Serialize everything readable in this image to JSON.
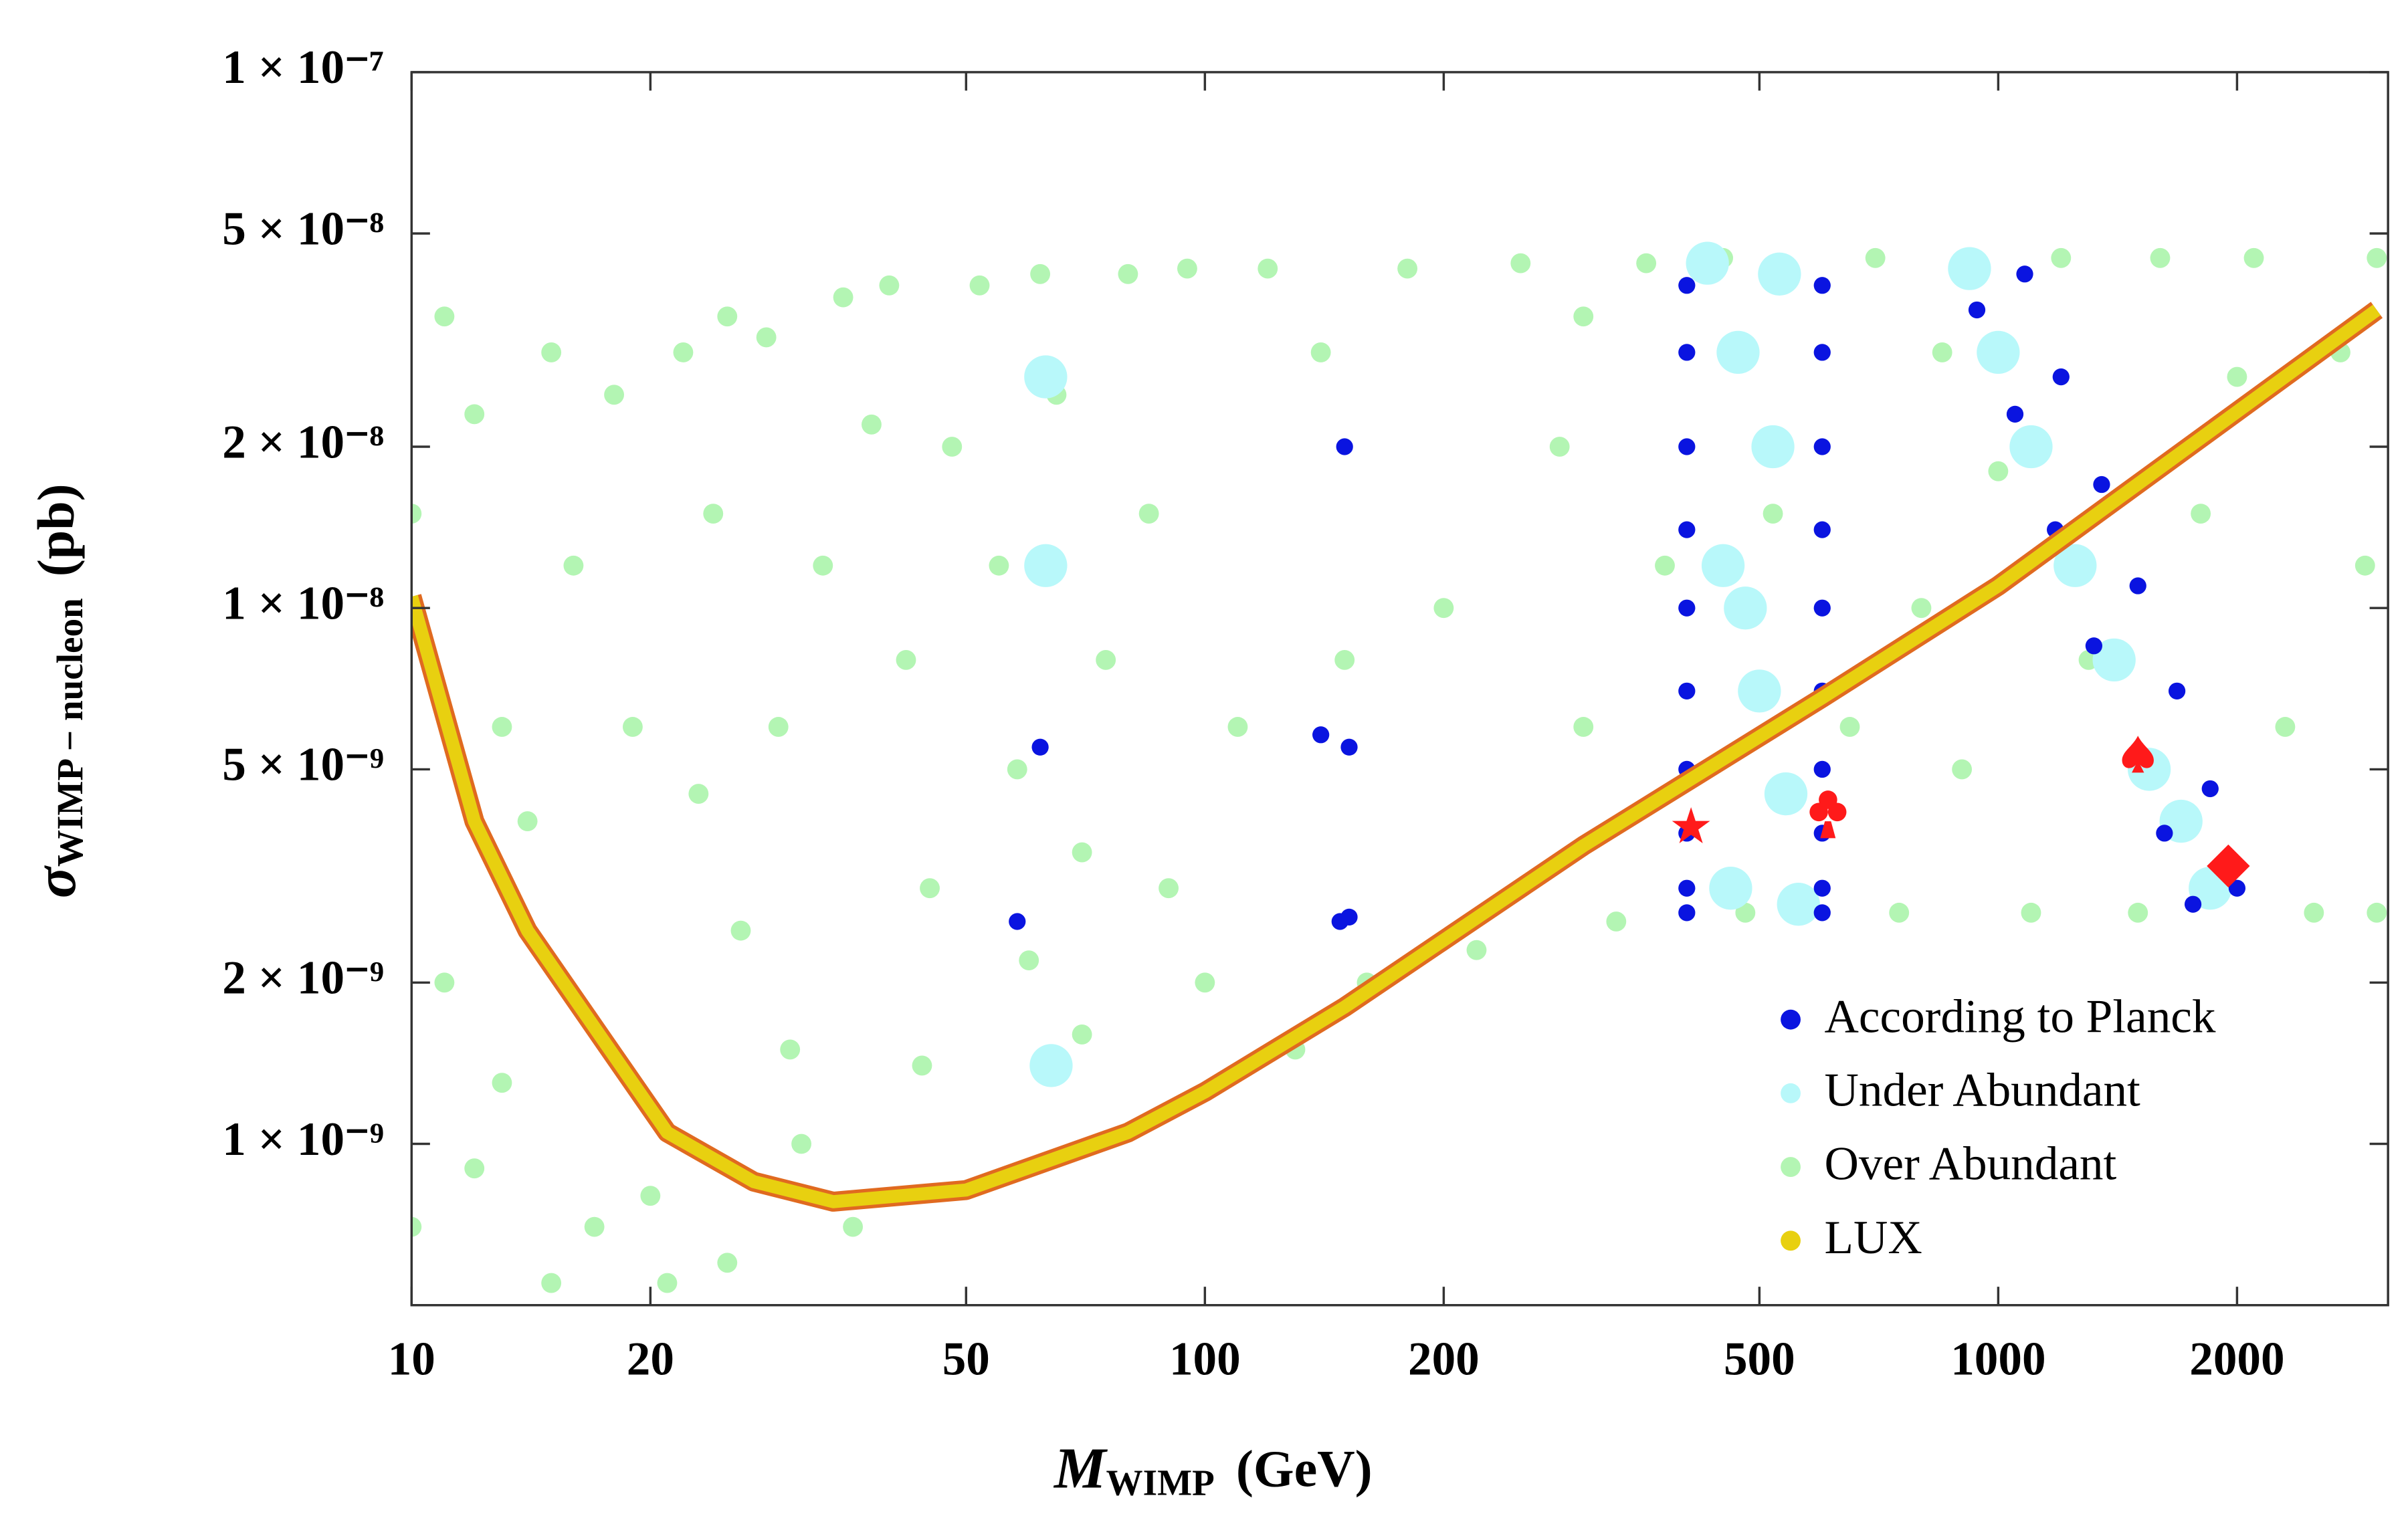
{
  "chart_data": {
    "type": "scatter",
    "x_label": {
      "symbol": "M",
      "subscript": "WIMP",
      "unit": "(GeV)"
    },
    "y_label": {
      "symbol": "σ",
      "subscript": "WIMP − nucleon",
      "unit": "(pb)"
    },
    "log_x": true,
    "log_y": true,
    "xlim": [
      10,
      3100
    ],
    "ylim": [
      5e-10,
      1e-07
    ],
    "xticks": [
      10,
      20,
      50,
      100,
      200,
      500,
      1000,
      2000
    ],
    "yticks": [
      {
        "value": 1e-07,
        "label": "1 × 10⁻⁷"
      },
      {
        "value": 5e-08,
        "label": "5 × 10⁻⁸"
      },
      {
        "value": 2e-08,
        "label": "2 × 10⁻⁸"
      },
      {
        "value": 1e-08,
        "label": "1 × 10⁻⁸"
      },
      {
        "value": 5e-09,
        "label": "5 × 10⁻⁹"
      },
      {
        "value": 2e-09,
        "label": "2 × 10⁻⁹"
      },
      {
        "value": 1e-09,
        "label": "1 × 10⁻⁹"
      }
    ],
    "legend": "lower right",
    "series": [
      {
        "name": "Over Abundant",
        "color": "#b3f5b3",
        "style": "dots",
        "size": 6.5,
        "x": [
          10,
          11,
          12,
          13,
          15,
          16,
          18,
          14,
          11,
          10,
          12,
          13,
          17,
          20,
          22,
          25,
          28,
          24,
          19,
          23,
          26,
          30,
          29,
          33,
          35,
          38,
          40,
          42,
          45,
          44,
          48,
          36,
          25,
          15,
          21,
          31,
          52,
          55,
          58,
          60,
          62,
          65,
          70,
          75,
          80,
          85,
          90,
          95,
          100,
          110,
          120,
          130,
          140,
          160,
          180,
          200,
          220,
          250,
          280,
          300,
          330,
          360,
          380,
          450,
          480,
          520,
          700,
          750,
          800,
          850,
          900,
          1100,
          1200,
          1300,
          1500,
          1600,
          1800,
          2100,
          2300,
          2500,
          2700,
          2900,
          3000,
          3000,
          2000,
          1000,
          650,
          300,
          150,
          70
        ],
        "values": [
          1.5e-08,
          3.5e-08,
          2.3e-08,
          6e-09,
          3e-08,
          1.2e-08,
          2.5e-08,
          4e-09,
          2e-09,
          7e-10,
          9e-10,
          1.3e-09,
          7e-10,
          8e-10,
          3e-08,
          3.5e-08,
          3.2e-08,
          1.5e-08,
          6e-09,
          4.5e-09,
          2.5e-09,
          1.5e-09,
          6e-09,
          1.2e-08,
          3.8e-08,
          2.2e-08,
          4e-08,
          8e-09,
          3e-09,
          1.4e-09,
          2e-08,
          7e-10,
          6e-10,
          5.5e-10,
          5.5e-10,
          1e-09,
          4e-08,
          1.2e-08,
          5e-09,
          2.2e-09,
          4.2e-08,
          2.5e-08,
          1.6e-09,
          8e-09,
          4.2e-08,
          1.5e-08,
          3e-09,
          4.3e-08,
          2e-09,
          6e-09,
          4.3e-08,
          1.5e-09,
          3e-08,
          2e-09,
          4.3e-08,
          1e-08,
          2.3e-09,
          4.4e-08,
          2e-08,
          6e-09,
          2.6e-09,
          4.4e-08,
          1.2e-08,
          4.5e-08,
          2.7e-09,
          1.5e-08,
          4.5e-08,
          2.7e-09,
          1e-08,
          3e-08,
          5e-09,
          2.7e-09,
          4.5e-08,
          8e-09,
          2.7e-09,
          4.5e-08,
          1.5e-08,
          4.5e-08,
          6e-09,
          2.7e-09,
          3e-08,
          1.2e-08,
          4.5e-08,
          2.7e-09,
          2.7e-08,
          1.8e-08,
          6e-09,
          3.5e-08,
          8e-09,
          3.5e-09
        ]
      },
      {
        "name": "Under Abundant",
        "color": "#b8f8fa",
        "style": "dots",
        "size": 14,
        "x": [
          430,
          470,
          520,
          450,
          500,
          540,
          460,
          560,
          530,
          480,
          920,
          1000,
          1100,
          1250,
          1400,
          1550,
          1700,
          1850,
          63,
          63,
          64
        ],
        "values": [
          4.4e-08,
          3e-08,
          2e-08,
          1.2e-08,
          7e-09,
          4.5e-09,
          3e-09,
          2.8e-09,
          4.2e-08,
          1e-08,
          4.3e-08,
          3e-08,
          2e-08,
          1.2e-08,
          8e-09,
          5e-09,
          4e-09,
          3e-09,
          2.7e-08,
          1.2e-08,
          1.4e-09
        ]
      },
      {
        "name": "According to Planck",
        "color": "#0a14e0",
        "style": "dots",
        "size": 5.5,
        "x": [
          405,
          405,
          405,
          405,
          405,
          405,
          405,
          405,
          405,
          405,
          600,
          600,
          600,
          600,
          600,
          600,
          600,
          600,
          600,
          600,
          940,
          1050,
          1180,
          1320,
          1480,
          1620,
          1760,
          1080,
          1200,
          1350,
          1500,
          1680,
          1850,
          2000,
          150,
          62,
          140,
          152,
          58,
          148,
          152
        ],
        "values": [
          4e-08,
          3e-08,
          2e-08,
          1.4e-08,
          1e-08,
          7e-09,
          5e-09,
          3.8e-09,
          3e-09,
          2.7e-09,
          4e-08,
          3e-08,
          2e-08,
          1.4e-08,
          1e-08,
          7e-09,
          5e-09,
          3.8e-09,
          3e-09,
          2.7e-09,
          3.6e-08,
          2.3e-08,
          1.4e-08,
          8.5e-09,
          5.3e-09,
          3.8e-09,
          2.8e-09,
          4.2e-08,
          2.7e-08,
          1.7e-08,
          1.1e-08,
          7e-09,
          4.6e-09,
          3e-09,
          2e-08,
          5.5e-09,
          5.8e-09,
          5.5e-09,
          2.6e-09,
          2.6e-09,
          2.65e-09
        ]
      },
      {
        "name": "LUX",
        "color": "#e8d010",
        "edge": "#e06a20",
        "style": "line",
        "x": [
          10,
          12,
          14,
          17.5,
          21,
          27,
          34,
          50,
          80,
          100,
          150,
          300,
          600,
          1000,
          3000
        ],
        "values": [
          1.05e-08,
          4e-09,
          2.5e-09,
          1.55e-09,
          1.05e-09,
          8.5e-10,
          7.8e-10,
          8.2e-10,
          1.05e-09,
          1.25e-09,
          1.8e-09,
          3.6e-09,
          6.8e-09,
          1.1e-08,
          3.6e-08
        ]
      },
      {
        "color": "#ff1a1a",
        "style": "symbols",
        "markers": [
          "star",
          "club",
          "spade",
          "diamond"
        ],
        "x": [
          410,
          610,
          1500,
          1950
        ],
        "values": [
          3.9e-09,
          4e-09,
          5.3e-09,
          3.3e-09
        ]
      }
    ]
  }
}
